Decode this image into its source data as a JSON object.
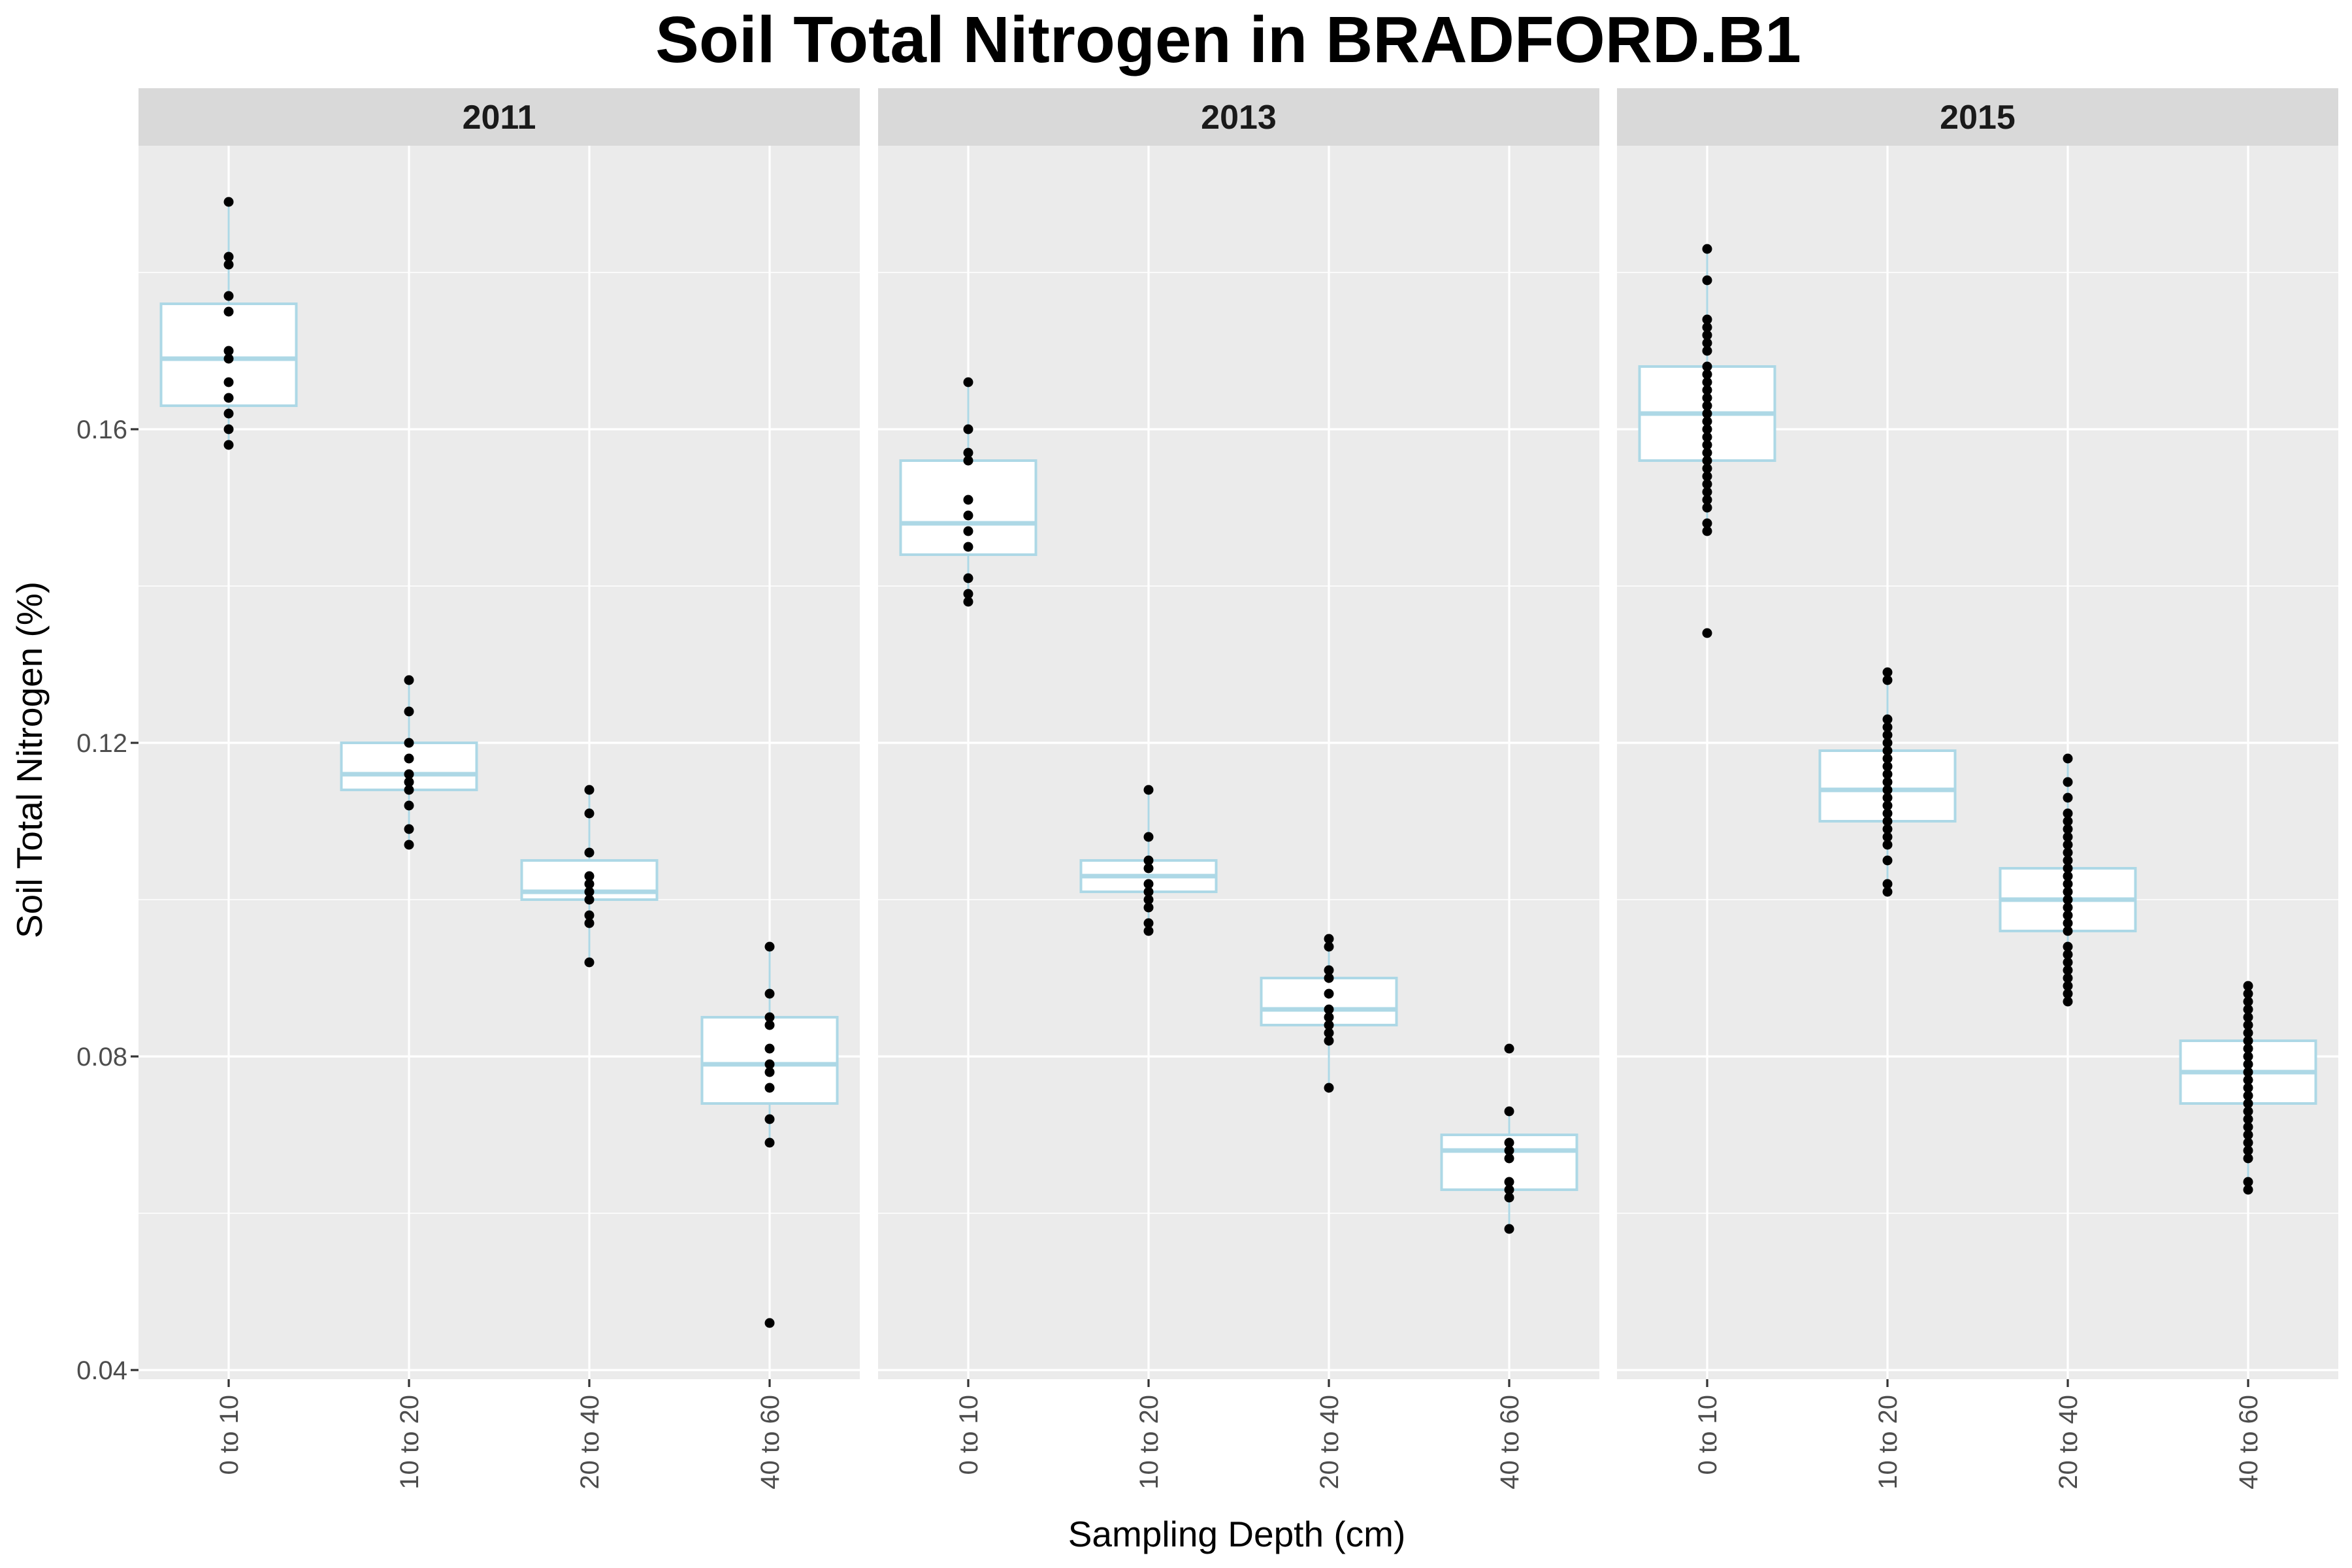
{
  "chart_data": {
    "type": "box",
    "title": "Soil Total Nitrogen in BRADFORD.B1",
    "xlabel": "Sampling Depth (cm)",
    "ylabel": "Soil Total Nitrogen (%)",
    "ylim": [
      0.04,
      0.19
    ],
    "yticks": [
      0.04,
      0.08,
      0.12,
      0.16
    ],
    "ytick_labels": [
      "0.04",
      "0.08",
      "0.12",
      "0.16"
    ],
    "categories": [
      "0 to 10",
      "10 to 20",
      "20 to 40",
      "40 to 60"
    ],
    "colors": {
      "box_outline": "#add8e6",
      "box_fill": "#ffffff",
      "points": "#000000",
      "panel": "#ebebeb",
      "strip": "#d9d9d9"
    },
    "panels": [
      {
        "label": "2011",
        "groups": [
          {
            "category": "0 to 10",
            "q1": 0.163,
            "median": 0.169,
            "q3": 0.176,
            "whisker_low": 0.158,
            "whisker_high": 0.189,
            "points": [
              0.158,
              0.16,
              0.162,
              0.164,
              0.166,
              0.169,
              0.17,
              0.175,
              0.177,
              0.181,
              0.182,
              0.189
            ]
          },
          {
            "category": "10 to 20",
            "q1": 0.114,
            "median": 0.116,
            "q3": 0.12,
            "whisker_low": 0.107,
            "whisker_high": 0.128,
            "points": [
              0.107,
              0.109,
              0.112,
              0.114,
              0.115,
              0.116,
              0.118,
              0.12,
              0.124,
              0.128
            ]
          },
          {
            "category": "20 to 40",
            "q1": 0.1,
            "median": 0.101,
            "q3": 0.105,
            "whisker_low": 0.092,
            "whisker_high": 0.114,
            "points": [
              0.092,
              0.097,
              0.098,
              0.1,
              0.101,
              0.102,
              0.103,
              0.106,
              0.111,
              0.114
            ]
          },
          {
            "category": "40 to 60",
            "q1": 0.074,
            "median": 0.079,
            "q3": 0.085,
            "whisker_low": 0.069,
            "whisker_high": 0.094,
            "points": [
              0.046,
              0.069,
              0.072,
              0.076,
              0.078,
              0.079,
              0.081,
              0.084,
              0.085,
              0.088,
              0.094
            ]
          }
        ]
      },
      {
        "label": "2013",
        "groups": [
          {
            "category": "0 to 10",
            "q1": 0.144,
            "median": 0.148,
            "q3": 0.156,
            "whisker_low": 0.138,
            "whisker_high": 0.166,
            "points": [
              0.138,
              0.139,
              0.141,
              0.145,
              0.147,
              0.149,
              0.151,
              0.156,
              0.157,
              0.16,
              0.166
            ]
          },
          {
            "category": "10 to 20",
            "q1": 0.101,
            "median": 0.103,
            "q3": 0.105,
            "whisker_low": 0.096,
            "whisker_high": 0.114,
            "points": [
              0.096,
              0.097,
              0.099,
              0.1,
              0.101,
              0.102,
              0.104,
              0.105,
              0.108,
              0.114
            ]
          },
          {
            "category": "20 to 40",
            "q1": 0.084,
            "median": 0.086,
            "q3": 0.09,
            "whisker_low": 0.076,
            "whisker_high": 0.095,
            "points": [
              0.076,
              0.082,
              0.083,
              0.084,
              0.085,
              0.086,
              0.088,
              0.09,
              0.091,
              0.094,
              0.095
            ]
          },
          {
            "category": "40 to 60",
            "q1": 0.063,
            "median": 0.068,
            "q3": 0.07,
            "whisker_low": 0.058,
            "whisker_high": 0.073,
            "points": [
              0.058,
              0.062,
              0.063,
              0.064,
              0.067,
              0.068,
              0.069,
              0.073,
              0.081
            ]
          }
        ]
      },
      {
        "label": "2015",
        "groups": [
          {
            "category": "0 to 10",
            "q1": 0.156,
            "median": 0.162,
            "q3": 0.168,
            "whisker_low": 0.147,
            "whisker_high": 0.183,
            "points": [
              0.134,
              0.147,
              0.148,
              0.15,
              0.151,
              0.152,
              0.153,
              0.154,
              0.155,
              0.156,
              0.157,
              0.158,
              0.159,
              0.16,
              0.161,
              0.162,
              0.163,
              0.164,
              0.165,
              0.166,
              0.167,
              0.168,
              0.17,
              0.171,
              0.172,
              0.173,
              0.174,
              0.179,
              0.183
            ]
          },
          {
            "category": "10 to 20",
            "q1": 0.11,
            "median": 0.114,
            "q3": 0.119,
            "whisker_low": 0.101,
            "whisker_high": 0.129,
            "points": [
              0.101,
              0.102,
              0.105,
              0.107,
              0.108,
              0.109,
              0.11,
              0.111,
              0.112,
              0.113,
              0.114,
              0.115,
              0.116,
              0.117,
              0.118,
              0.119,
              0.12,
              0.121,
              0.122,
              0.123,
              0.128,
              0.129
            ]
          },
          {
            "category": "20 to 40",
            "q1": 0.096,
            "median": 0.1,
            "q3": 0.104,
            "whisker_low": 0.087,
            "whisker_high": 0.118,
            "points": [
              0.087,
              0.088,
              0.089,
              0.09,
              0.091,
              0.092,
              0.093,
              0.094,
              0.096,
              0.097,
              0.098,
              0.099,
              0.1,
              0.101,
              0.102,
              0.103,
              0.104,
              0.105,
              0.106,
              0.107,
              0.108,
              0.109,
              0.11,
              0.111,
              0.113,
              0.115,
              0.118
            ]
          },
          {
            "category": "40 to 60",
            "q1": 0.074,
            "median": 0.078,
            "q3": 0.082,
            "whisker_low": 0.063,
            "whisker_high": 0.089,
            "points": [
              0.063,
              0.064,
              0.067,
              0.068,
              0.069,
              0.07,
              0.071,
              0.072,
              0.073,
              0.074,
              0.075,
              0.076,
              0.077,
              0.078,
              0.079,
              0.08,
              0.081,
              0.082,
              0.083,
              0.084,
              0.085,
              0.086,
              0.087,
              0.088,
              0.089
            ]
          }
        ]
      }
    ]
  }
}
